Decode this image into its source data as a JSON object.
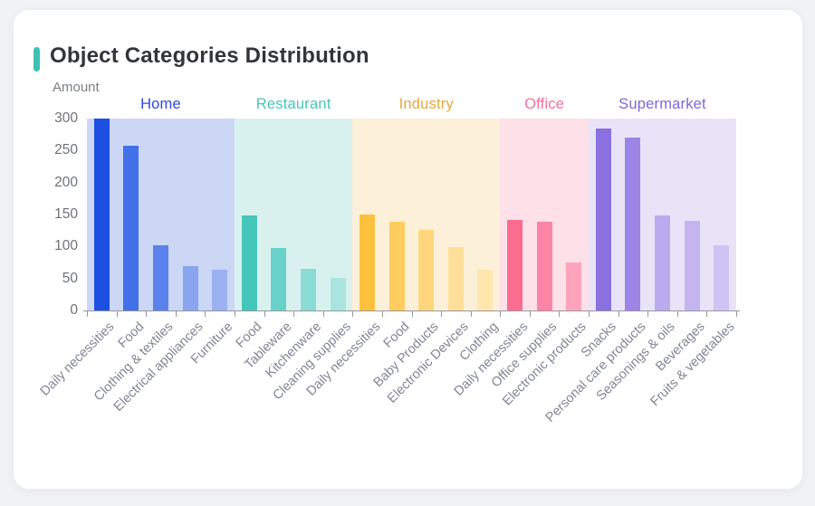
{
  "page": {
    "accent_color": "#3fc1b0",
    "card_background": "#ffffff",
    "page_background": "#f1f2f4"
  },
  "chart_data": {
    "type": "bar",
    "title": "Object Categories Distribution",
    "ylabel": "Amount",
    "xlabel": "",
    "ylim": [
      0,
      300
    ],
    "y_ticks": [
      0,
      50,
      100,
      150,
      200,
      250,
      300
    ],
    "grid": false,
    "legend_position": "group-labels-above-bands",
    "axis_color": "#97989d",
    "groups": [
      {
        "name": "Home",
        "label_color": "#2d49e0",
        "band_color": "#ccd7f5",
        "categories": [
          "Daily necessities",
          "Food",
          "Clothing & textiles",
          "Electrical appliances",
          "Furniture"
        ],
        "values": [
          300,
          258,
          102,
          69,
          64
        ],
        "bar_colors": [
          "#1d4fe3",
          "#4170e8",
          "#5b82ec",
          "#89a5f0",
          "#9ab1f2"
        ]
      },
      {
        "name": "Restaurant",
        "label_color": "#45c7ba",
        "band_color": "#d9f1ee",
        "categories": [
          "Food",
          "Tableware",
          "Kitchenware",
          "Cleaning supplies"
        ],
        "values": [
          148,
          97,
          65,
          51
        ],
        "bar_colors": [
          "#45c6bb",
          "#68d2c8",
          "#8bdcd5",
          "#a9e4df"
        ]
      },
      {
        "name": "Industry",
        "label_color": "#e9a63b",
        "band_color": "#fdf0d8",
        "categories": [
          "Daily necessities",
          "Food",
          "Baby Products",
          "Electronic Devices",
          "Clothing"
        ],
        "values": [
          150,
          138,
          126,
          99,
          63
        ],
        "bar_colors": [
          "#ffc13d",
          "#ffcc5f",
          "#ffd67c",
          "#ffdf99",
          "#ffe6ad"
        ]
      },
      {
        "name": "Office",
        "label_color": "#f96f96",
        "band_color": "#fde0e8",
        "categories": [
          "Daily necessities",
          "Office supplies",
          "Electronic products"
        ],
        "values": [
          142,
          138,
          75
        ],
        "bar_colors": [
          "#fb6d90",
          "#fc84a4",
          "#fda4bc"
        ]
      },
      {
        "name": "Supermarket",
        "label_color": "#7a68dd",
        "band_color": "#e8e3f7",
        "categories": [
          "Snacks",
          "Personal care products",
          "Seasonings & oils",
          "Beverages",
          "Fruits & vegetables"
        ],
        "values": [
          285,
          271,
          148,
          140,
          102
        ],
        "bar_colors": [
          "#8a70e0",
          "#9d85e6",
          "#bcaaef",
          "#c4b4f0",
          "#cfc2f4"
        ]
      }
    ]
  }
}
